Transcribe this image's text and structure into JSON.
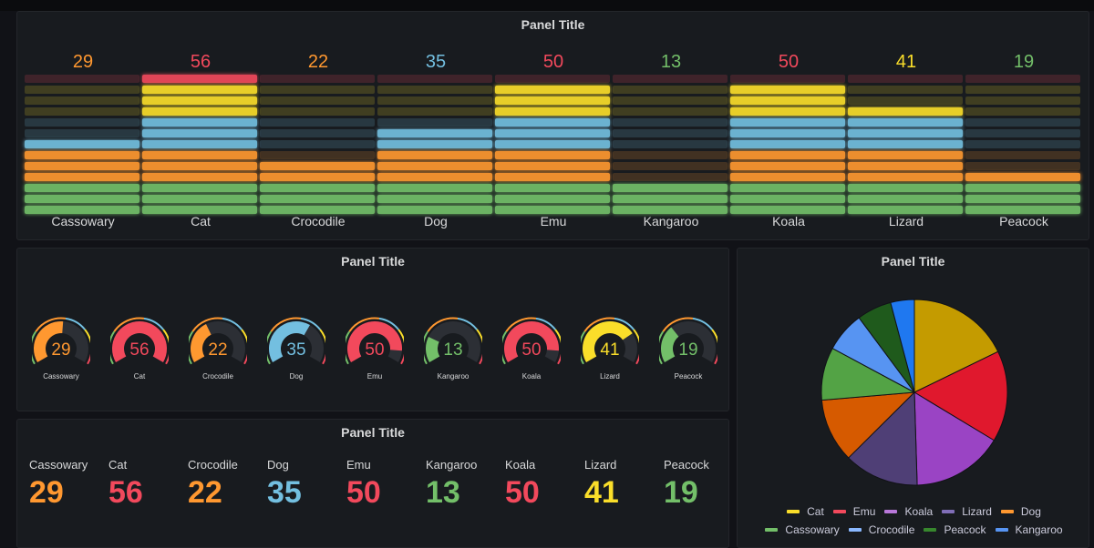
{
  "colors": {
    "Cassowary": "#ff9830",
    "Cat": "#f2495c",
    "Crocodile": "#ff9830",
    "Dog": "#73bfe0",
    "Emu": "#f2495c",
    "Kangaroo": "#73bf69",
    "Koala": "#f2495c",
    "Lizard": "#fade2a",
    "Peacock": "#73bf69"
  },
  "panels": [
    {
      "title": "Panel Title"
    },
    {
      "title": "Panel Title"
    },
    {
      "title": "Panel Title"
    },
    {
      "title": "Panel Title"
    }
  ],
  "chart_data": [
    {
      "type": "bar",
      "style": "retro-lcd bar gauge",
      "title": "Panel Title",
      "categories": [
        "Cassowary",
        "Cat",
        "Crocodile",
        "Dog",
        "Emu",
        "Kangaroo",
        "Koala",
        "Lizard",
        "Peacock"
      ],
      "values": [
        29,
        56,
        22,
        35,
        50,
        13,
        50,
        41,
        19
      ],
      "ylim": [
        0,
        56
      ],
      "value_labels": [
        "29",
        "56",
        "22",
        "35",
        "50",
        "13",
        "50",
        "41",
        "19"
      ]
    },
    {
      "type": "gauge",
      "title": "Panel Title",
      "categories": [
        "Cassowary",
        "Cat",
        "Crocodile",
        "Dog",
        "Emu",
        "Kangaroo",
        "Koala",
        "Lizard",
        "Peacock"
      ],
      "values": [
        29,
        56,
        22,
        35,
        50,
        13,
        50,
        41,
        19
      ],
      "value_labels": [
        "29",
        "56",
        "22",
        "35",
        "50",
        "13",
        "50",
        "41",
        "19"
      ]
    },
    {
      "type": "table",
      "style": "stat",
      "title": "Panel Title",
      "categories": [
        "Cassowary",
        "Cat",
        "Crocodile",
        "Dog",
        "Emu",
        "Kangaroo",
        "Koala",
        "Lizard",
        "Peacock"
      ],
      "values": [
        29,
        56,
        22,
        35,
        50,
        13,
        50,
        41,
        19
      ],
      "value_labels": [
        "29",
        "56",
        "22",
        "35",
        "50",
        "13",
        "50",
        "41",
        "19"
      ]
    },
    {
      "type": "pie",
      "title": "Panel Title",
      "slices": [
        {
          "name": "Cat",
          "value": 56,
          "color": "#c49b00"
        },
        {
          "name": "Emu",
          "value": 50,
          "color": "#e0182d"
        },
        {
          "name": "Koala",
          "value": 50,
          "color": "#9a44c4"
        },
        {
          "name": "Lizard",
          "value": 41,
          "color": "#4f3f76"
        },
        {
          "name": "Dog",
          "value": 35,
          "color": "#d65a00"
        },
        {
          "name": "Cassowary",
          "value": 29,
          "color": "#53a345"
        },
        {
          "name": "Crocodile",
          "value": 22,
          "color": "#5794f2"
        },
        {
          "name": "Peacock",
          "value": 19,
          "color": "#1f5a1c"
        },
        {
          "name": "Kangaroo",
          "value": 13,
          "color": "#1f78f0"
        }
      ],
      "legend": [
        [
          {
            "name": "Cat",
            "color": "#fade2a"
          },
          {
            "name": "Emu",
            "color": "#f2495c"
          },
          {
            "name": "Koala",
            "color": "#b877d9"
          },
          {
            "name": "Lizard",
            "color": "#806eb7"
          },
          {
            "name": "Dog",
            "color": "#ff9830"
          }
        ],
        [
          {
            "name": "Cassowary",
            "color": "#73bf69"
          },
          {
            "name": "Crocodile",
            "color": "#8ab8ff"
          },
          {
            "name": "Peacock",
            "color": "#37872d"
          },
          {
            "name": "Kangaroo",
            "color": "#5794f2"
          }
        ]
      ],
      "legend_placement": "bottom"
    }
  ]
}
